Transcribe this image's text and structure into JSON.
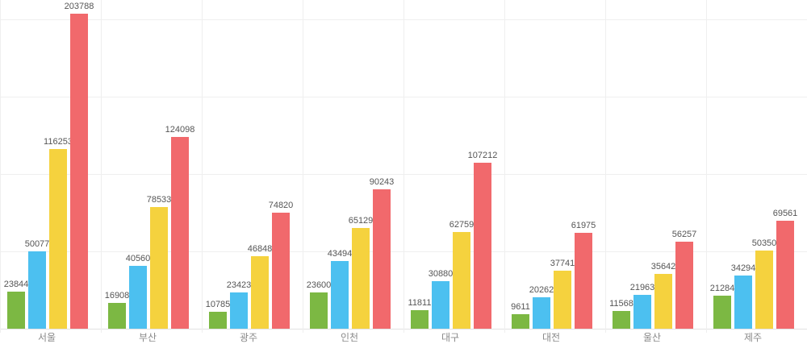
{
  "chart": {
    "background_color": "#ffffff",
    "gridline_color": "#efefef",
    "axis_line_color": "#e2e2e2",
    "value_label_color": "#555555",
    "category_label_color": "#8a8a8a"
  },
  "chart_data": {
    "type": "bar",
    "title": "",
    "xlabel": "",
    "ylabel": "",
    "legend": "none",
    "grid": true,
    "data_labels": true,
    "ylim": [
      0,
      200000
    ],
    "gridline_interval": 50000,
    "categories": [
      "서울",
      "부산",
      "광주",
      "인천",
      "대구",
      "대전",
      "울산",
      "제주"
    ],
    "series": [
      {
        "name": "green",
        "color": "#7cb843",
        "values": [
          23844,
          16908,
          10785,
          23600,
          11811,
          9611,
          11568,
          21284
        ]
      },
      {
        "name": "blue",
        "color": "#4cc0f0",
        "values": [
          50077,
          40560,
          23423,
          43494,
          30880,
          20262,
          21963,
          34294
        ]
      },
      {
        "name": "yellow",
        "color": "#f5d23e",
        "values": [
          116253,
          78533,
          46848,
          65129,
          62759,
          37741,
          35642,
          50350
        ]
      },
      {
        "name": "red",
        "color": "#f1696c",
        "values": [
          203788,
          124098,
          74820,
          90243,
          107212,
          61975,
          56257,
          69561
        ]
      }
    ]
  }
}
